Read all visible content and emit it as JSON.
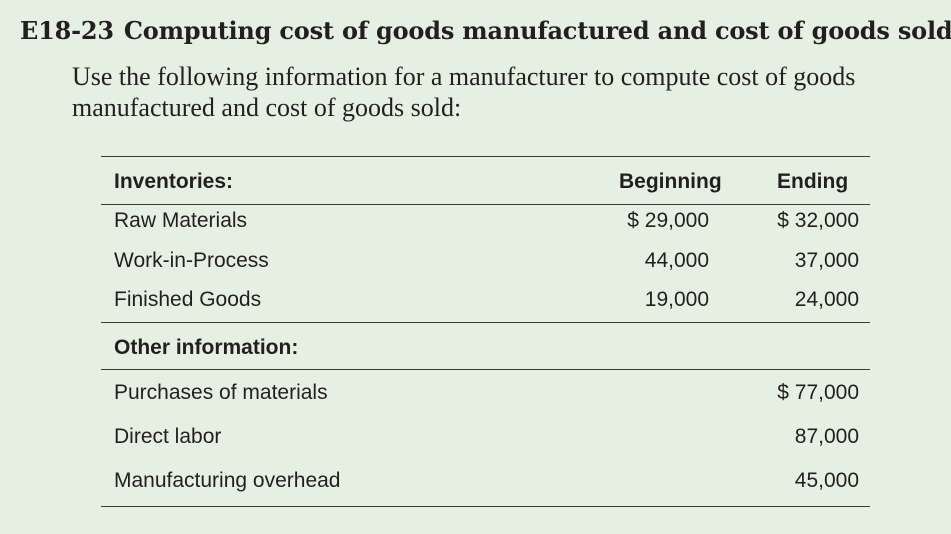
{
  "exercise": {
    "number": "E18-23",
    "title": "Computing cost of goods manufactured and cost of goods sold",
    "intro": "Use the following information for a manufacturer to compute cost of goods manufactured and cost of goods sold:"
  },
  "table": {
    "inventories_label": "Inventories:",
    "col_beginning": "Beginning",
    "col_ending": "Ending",
    "inventory_rows": [
      {
        "label": "Raw Materials",
        "beginning": "$ 29,000",
        "ending": "$ 32,000"
      },
      {
        "label": "Work-in-Process",
        "beginning": "44,000",
        "ending": "37,000"
      },
      {
        "label": "Finished Goods",
        "beginning": "19,000",
        "ending": "24,000"
      }
    ],
    "other_label": "Other information:",
    "other_rows": [
      {
        "label": "Purchases of materials",
        "ending": "$ 77,000"
      },
      {
        "label": "Direct labor",
        "ending": "87,000"
      },
      {
        "label": "Manufacturing overhead",
        "ending": "45,000"
      }
    ]
  }
}
